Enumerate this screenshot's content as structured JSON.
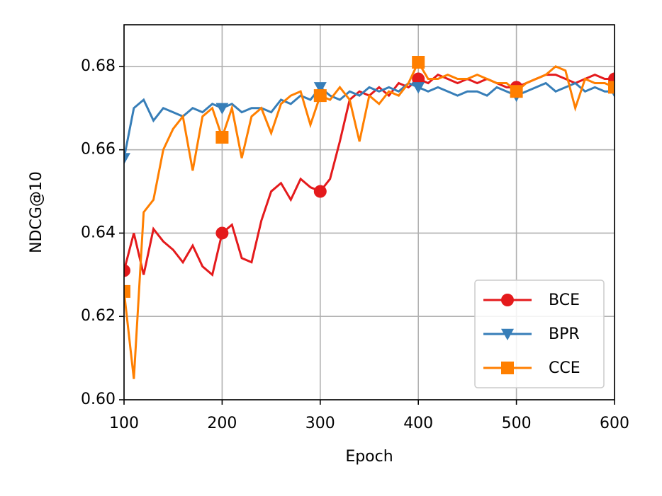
{
  "chart_data": {
    "type": "line",
    "x_label": "Epoch",
    "y_label": "NDCG@10",
    "x": [
      100,
      110,
      120,
      130,
      140,
      150,
      160,
      170,
      180,
      190,
      200,
      210,
      220,
      230,
      240,
      250,
      260,
      270,
      280,
      290,
      300,
      310,
      320,
      330,
      340,
      350,
      360,
      370,
      380,
      390,
      400,
      410,
      420,
      430,
      440,
      450,
      460,
      470,
      480,
      490,
      500,
      510,
      520,
      530,
      540,
      550,
      560,
      570,
      580,
      590,
      600
    ],
    "series": [
      {
        "name": "BCE",
        "color": "#e41a1c",
        "marker": "circle",
        "values": [
          0.631,
          0.64,
          0.63,
          0.641,
          0.638,
          0.636,
          0.633,
          0.637,
          0.632,
          0.63,
          0.64,
          0.642,
          0.634,
          0.633,
          0.643,
          0.65,
          0.652,
          0.648,
          0.653,
          0.651,
          0.65,
          0.653,
          0.662,
          0.672,
          0.674,
          0.673,
          0.675,
          0.673,
          0.676,
          0.675,
          0.677,
          0.676,
          0.678,
          0.677,
          0.676,
          0.677,
          0.676,
          0.677,
          0.676,
          0.675,
          0.675,
          0.676,
          0.677,
          0.678,
          0.678,
          0.677,
          0.676,
          0.677,
          0.678,
          0.677,
          0.677
        ]
      },
      {
        "name": "BPR",
        "color": "#377eb8",
        "marker": "triangle-down",
        "values": [
          0.658,
          0.67,
          0.672,
          0.667,
          0.67,
          0.669,
          0.668,
          0.67,
          0.669,
          0.671,
          0.67,
          0.671,
          0.669,
          0.67,
          0.67,
          0.669,
          0.672,
          0.671,
          0.673,
          0.672,
          0.675,
          0.673,
          0.672,
          0.674,
          0.673,
          0.675,
          0.674,
          0.675,
          0.674,
          0.676,
          0.675,
          0.674,
          0.675,
          0.674,
          0.673,
          0.674,
          0.674,
          0.673,
          0.675,
          0.674,
          0.673,
          0.674,
          0.675,
          0.676,
          0.674,
          0.675,
          0.676,
          0.674,
          0.675,
          0.674,
          0.674
        ]
      },
      {
        "name": "CCE",
        "color": "#ff7f00",
        "marker": "square",
        "values": [
          0.626,
          0.605,
          0.645,
          0.648,
          0.66,
          0.665,
          0.668,
          0.655,
          0.668,
          0.67,
          0.663,
          0.67,
          0.658,
          0.668,
          0.67,
          0.664,
          0.671,
          0.673,
          0.674,
          0.666,
          0.673,
          0.672,
          0.675,
          0.672,
          0.662,
          0.673,
          0.671,
          0.674,
          0.673,
          0.676,
          0.681,
          0.677,
          0.677,
          0.678,
          0.677,
          0.677,
          0.678,
          0.677,
          0.676,
          0.676,
          0.674,
          0.676,
          0.677,
          0.678,
          0.68,
          0.679,
          0.67,
          0.677,
          0.676,
          0.676,
          0.675
        ]
      }
    ],
    "xlim": [
      100,
      600
    ],
    "xticks": [
      100,
      200,
      300,
      400,
      500,
      600
    ],
    "ylim": [
      0.6,
      0.69
    ],
    "yticks": [
      {
        "value": 0.6,
        "label": "0.60"
      },
      0.62,
      0.64,
      0.66,
      0.68
    ],
    "grid": true,
    "legend": "lower right"
  }
}
